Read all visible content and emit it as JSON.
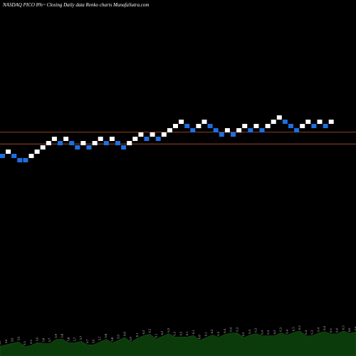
{
  "header": {
    "title": "NASDAQ PICO 8%~  Closing Daily data  Renko  charts MunafaSutra.com"
  },
  "colors": {
    "background": "#000000",
    "up_brick": "#ffffff",
    "down_brick": "#1e6fe0",
    "reference_line": "#b5532a",
    "volume_fill": "#0b3a0b",
    "volume_border": "#1a5a1a"
  },
  "chart_data": {
    "type": "renko",
    "y_axis_visible": false,
    "grid": false,
    "bricks": [
      {
        "level": 0,
        "dir": "down"
      },
      {
        "level": 1,
        "dir": "up"
      },
      {
        "level": 0,
        "dir": "down"
      },
      {
        "level": -1,
        "dir": "down"
      },
      {
        "level": -1,
        "dir": "down"
      },
      {
        "level": 0,
        "dir": "up"
      },
      {
        "level": 1,
        "dir": "up"
      },
      {
        "level": 2,
        "dir": "up"
      },
      {
        "level": 3,
        "dir": "up"
      },
      {
        "level": 4,
        "dir": "up"
      },
      {
        "level": 3,
        "dir": "down"
      },
      {
        "level": 4,
        "dir": "up"
      },
      {
        "level": 3,
        "dir": "down"
      },
      {
        "level": 2,
        "dir": "down"
      },
      {
        "level": 3,
        "dir": "up"
      },
      {
        "level": 2,
        "dir": "down"
      },
      {
        "level": 3,
        "dir": "up"
      },
      {
        "level": 4,
        "dir": "up"
      },
      {
        "level": 3,
        "dir": "down"
      },
      {
        "level": 4,
        "dir": "up"
      },
      {
        "level": 3,
        "dir": "down"
      },
      {
        "level": 2,
        "dir": "down"
      },
      {
        "level": 3,
        "dir": "up"
      },
      {
        "level": 4,
        "dir": "up"
      },
      {
        "level": 5,
        "dir": "up"
      },
      {
        "level": 4,
        "dir": "down"
      },
      {
        "level": 5,
        "dir": "up"
      },
      {
        "level": 4,
        "dir": "down"
      },
      {
        "level": 5,
        "dir": "up"
      },
      {
        "level": 6,
        "dir": "up"
      },
      {
        "level": 7,
        "dir": "up"
      },
      {
        "level": 8,
        "dir": "up"
      },
      {
        "level": 7,
        "dir": "down"
      },
      {
        "level": 6,
        "dir": "down"
      },
      {
        "level": 7,
        "dir": "up"
      },
      {
        "level": 8,
        "dir": "up"
      },
      {
        "level": 7,
        "dir": "down"
      },
      {
        "level": 6,
        "dir": "down"
      },
      {
        "level": 5,
        "dir": "down"
      },
      {
        "level": 6,
        "dir": "up"
      },
      {
        "level": 5,
        "dir": "down"
      },
      {
        "level": 6,
        "dir": "up"
      },
      {
        "level": 7,
        "dir": "up"
      },
      {
        "level": 6,
        "dir": "down"
      },
      {
        "level": 7,
        "dir": "up"
      },
      {
        "level": 6,
        "dir": "down"
      },
      {
        "level": 7,
        "dir": "up"
      },
      {
        "level": 8,
        "dir": "up"
      },
      {
        "level": 9,
        "dir": "up"
      },
      {
        "level": 8,
        "dir": "down"
      },
      {
        "level": 7,
        "dir": "down"
      },
      {
        "level": 6,
        "dir": "down"
      },
      {
        "level": 7,
        "dir": "up"
      },
      {
        "level": 8,
        "dir": "up"
      },
      {
        "level": 7,
        "dir": "down"
      },
      {
        "level": 8,
        "dir": "up"
      },
      {
        "level": 7,
        "dir": "down"
      },
      {
        "level": 8,
        "dir": "up"
      }
    ],
    "reference_lines": [
      {
        "level": 5.1
      },
      {
        "level": 2.3
      }
    ],
    "volume_labels": [
      "5.6",
      "5.6",
      "5.6",
      "5.6",
      "5.5",
      "5.5",
      "5.6",
      "5.8",
      "5.7",
      "5.9",
      "5.8",
      "5.8",
      "5.7",
      "5.7",
      "5.7",
      "5.6",
      "5.7",
      "5.8",
      "5.8",
      "5.9",
      "6.0",
      "5.9",
      "6.1",
      "6.2",
      "6.2",
      "6.1",
      "6.2",
      "6.3",
      "6.3",
      "6.2",
      "6.1",
      "6.1",
      "6.0",
      "6.1",
      "6.2",
      "6.3",
      "6.4",
      "6.4",
      "6.3",
      "6.2",
      "6.3",
      "6.3",
      "6.4",
      "6.3",
      "6.2",
      "6.3",
      "6.4",
      "6.5",
      "6.5",
      "6.4",
      "6.3",
      "6.4",
      "6.4",
      "6.5",
      "6.4",
      "6.5",
      "6.6",
      "6.6"
    ]
  }
}
